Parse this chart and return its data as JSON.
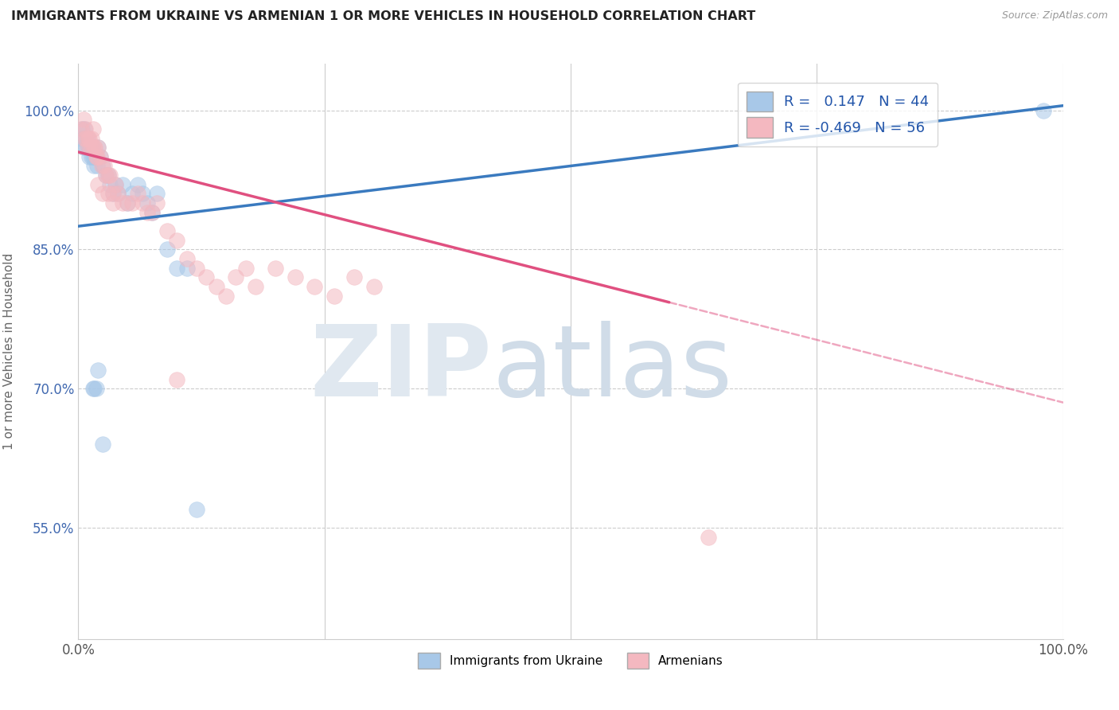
{
  "title": "IMMIGRANTS FROM UKRAINE VS ARMENIAN 1 OR MORE VEHICLES IN HOUSEHOLD CORRELATION CHART",
  "source": "Source: ZipAtlas.com",
  "ylabel": "1 or more Vehicles in Household",
  "xlim": [
    0.0,
    1.0
  ],
  "ylim": [
    0.43,
    1.05
  ],
  "yticks": [
    0.55,
    0.7,
    0.85,
    1.0
  ],
  "ytick_labels": [
    "55.0%",
    "70.0%",
    "85.0%",
    "100.0%"
  ],
  "xticks": [
    0.0,
    0.25,
    0.5,
    0.75,
    1.0
  ],
  "xtick_labels": [
    "0.0%",
    "",
    "",
    "",
    "100.0%"
  ],
  "ukraine_R": 0.147,
  "ukraine_N": 44,
  "armenian_R": -0.469,
  "armenian_N": 56,
  "ukraine_color": "#a8c8e8",
  "armenian_color": "#f4b8c0",
  "ukraine_line_color": "#3a7abf",
  "armenian_line_color": "#e05080",
  "ukraine_line_x0": 0.0,
  "ukraine_line_y0": 0.875,
  "ukraine_line_x1": 1.0,
  "ukraine_line_y1": 1.005,
  "armenian_line_x0": 0.0,
  "armenian_line_y0": 0.955,
  "armenian_line_x1": 1.0,
  "armenian_line_y1": 0.685,
  "armenian_line_solid_end": 0.6,
  "ukraine_x": [
    0.003,
    0.004,
    0.005,
    0.006,
    0.007,
    0.008,
    0.009,
    0.01,
    0.011,
    0.012,
    0.013,
    0.014,
    0.015,
    0.016,
    0.017,
    0.018,
    0.019,
    0.02,
    0.022,
    0.025,
    0.028,
    0.03,
    0.032,
    0.035,
    0.038,
    0.04,
    0.045,
    0.05,
    0.055,
    0.06,
    0.065,
    0.07,
    0.075,
    0.08,
    0.09,
    0.1,
    0.11,
    0.12,
    0.015,
    0.016,
    0.018,
    0.02,
    0.025,
    0.98
  ],
  "ukraine_y": [
    0.97,
    0.98,
    0.96,
    0.98,
    0.97,
    0.96,
    0.97,
    0.96,
    0.95,
    0.96,
    0.95,
    0.96,
    0.95,
    0.94,
    0.95,
    0.95,
    0.94,
    0.96,
    0.95,
    0.94,
    0.93,
    0.93,
    0.92,
    0.91,
    0.92,
    0.91,
    0.92,
    0.9,
    0.91,
    0.92,
    0.91,
    0.9,
    0.89,
    0.91,
    0.85,
    0.83,
    0.83,
    0.57,
    0.7,
    0.7,
    0.7,
    0.72,
    0.64,
    1.0
  ],
  "armenian_x": [
    0.003,
    0.005,
    0.006,
    0.007,
    0.008,
    0.009,
    0.01,
    0.011,
    0.012,
    0.013,
    0.014,
    0.015,
    0.016,
    0.017,
    0.018,
    0.019,
    0.02,
    0.022,
    0.024,
    0.026,
    0.028,
    0.03,
    0.032,
    0.035,
    0.038,
    0.04,
    0.045,
    0.05,
    0.055,
    0.06,
    0.065,
    0.07,
    0.075,
    0.08,
    0.09,
    0.1,
    0.11,
    0.12,
    0.13,
    0.14,
    0.15,
    0.16,
    0.17,
    0.18,
    0.2,
    0.22,
    0.24,
    0.26,
    0.28,
    0.3,
    0.02,
    0.025,
    0.03,
    0.035,
    0.64,
    0.1
  ],
  "armenian_y": [
    0.98,
    0.99,
    0.97,
    0.98,
    0.97,
    0.96,
    0.97,
    0.97,
    0.96,
    0.97,
    0.96,
    0.98,
    0.96,
    0.96,
    0.95,
    0.95,
    0.96,
    0.95,
    0.94,
    0.94,
    0.93,
    0.93,
    0.93,
    0.91,
    0.92,
    0.91,
    0.9,
    0.9,
    0.9,
    0.91,
    0.9,
    0.89,
    0.89,
    0.9,
    0.87,
    0.86,
    0.84,
    0.83,
    0.82,
    0.81,
    0.8,
    0.82,
    0.83,
    0.81,
    0.83,
    0.82,
    0.81,
    0.8,
    0.82,
    0.81,
    0.92,
    0.91,
    0.91,
    0.9,
    0.54,
    0.71
  ]
}
